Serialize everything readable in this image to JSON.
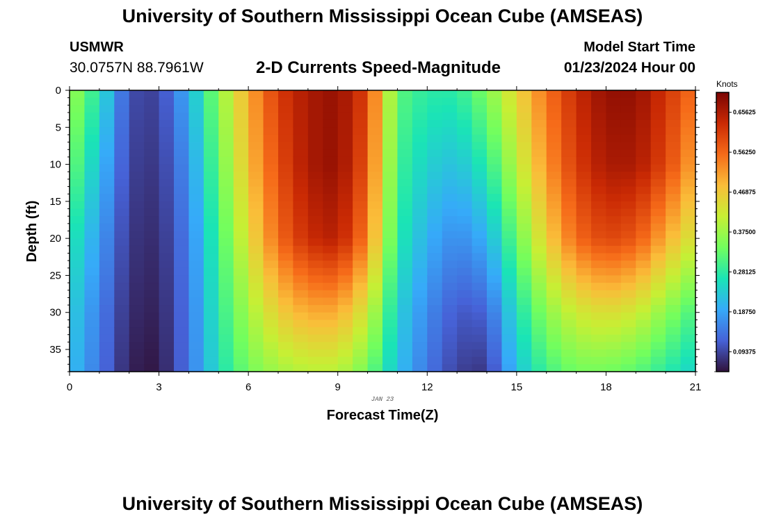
{
  "header": {
    "title": "University of Southern Mississippi Ocean Cube (AMSEAS)",
    "station": "USMWR",
    "coordinates": "30.0757N  88.7961W",
    "subtitle": "2-D Currents Speed-Magnitude",
    "start_label": "Model Start Time",
    "start_value": "01/23/2024 Hour 00"
  },
  "footer": {
    "title": "University of Southern Mississippi Ocean Cube (AMSEAS)"
  },
  "chart_data": {
    "type": "heatmap",
    "title": "2-D Currents Speed-Magnitude",
    "xlabel": "Forecast Time(Z)",
    "ylabel": "Depth (ft)",
    "date_label": "JAN 23",
    "colorbar_label": "Knots",
    "xlim": [
      0,
      21
    ],
    "ylim": [
      0,
      38
    ],
    "xticks": [
      0,
      3,
      6,
      9,
      12,
      15,
      18,
      21
    ],
    "yticks": [
      0,
      5,
      10,
      15,
      20,
      25,
      30,
      35
    ],
    "colorbar_ticks": [
      "0.65625",
      "0.56250",
      "0.46875",
      "0.37500",
      "0.28125",
      "0.18750",
      "0.09375"
    ],
    "colorbar_range": [
      0.047,
      0.703
    ],
    "colors": [
      "#30123b",
      "#4662d7",
      "#36aaf9",
      "#1ae4b6",
      "#72fe5e",
      "#c7ef34",
      "#fabd39",
      "#f66b19",
      "#ca2a04",
      "#7a0403"
    ],
    "time_hours": [
      0,
      1,
      2,
      3,
      4,
      5,
      6,
      7,
      8,
      9,
      10,
      11,
      12,
      13,
      14,
      15,
      16,
      17,
      18,
      19,
      20,
      21
    ],
    "depth_ft": [
      0,
      10,
      20,
      30,
      38
    ],
    "speed_knots": [
      [
        0.38,
        0.27,
        0.1,
        0.09,
        0.2,
        0.36,
        0.5,
        0.61,
        0.66,
        0.68,
        0.6,
        0.32,
        0.28,
        0.28,
        0.35,
        0.45,
        0.55,
        0.63,
        0.68,
        0.68,
        0.62,
        0.55
      ],
      [
        0.34,
        0.22,
        0.09,
        0.08,
        0.17,
        0.33,
        0.48,
        0.59,
        0.66,
        0.68,
        0.58,
        0.3,
        0.24,
        0.22,
        0.28,
        0.4,
        0.52,
        0.61,
        0.66,
        0.66,
        0.6,
        0.5
      ],
      [
        0.28,
        0.18,
        0.08,
        0.07,
        0.15,
        0.3,
        0.44,
        0.56,
        0.63,
        0.65,
        0.54,
        0.28,
        0.2,
        0.16,
        0.2,
        0.33,
        0.46,
        0.56,
        0.6,
        0.58,
        0.5,
        0.42
      ],
      [
        0.24,
        0.15,
        0.07,
        0.06,
        0.14,
        0.28,
        0.38,
        0.46,
        0.5,
        0.5,
        0.42,
        0.24,
        0.16,
        0.11,
        0.12,
        0.26,
        0.36,
        0.42,
        0.44,
        0.42,
        0.36,
        0.3
      ],
      [
        0.22,
        0.14,
        0.06,
        0.05,
        0.14,
        0.26,
        0.34,
        0.38,
        0.4,
        0.4,
        0.34,
        0.22,
        0.14,
        0.09,
        0.08,
        0.22,
        0.3,
        0.34,
        0.34,
        0.32,
        0.28,
        0.24
      ]
    ]
  }
}
